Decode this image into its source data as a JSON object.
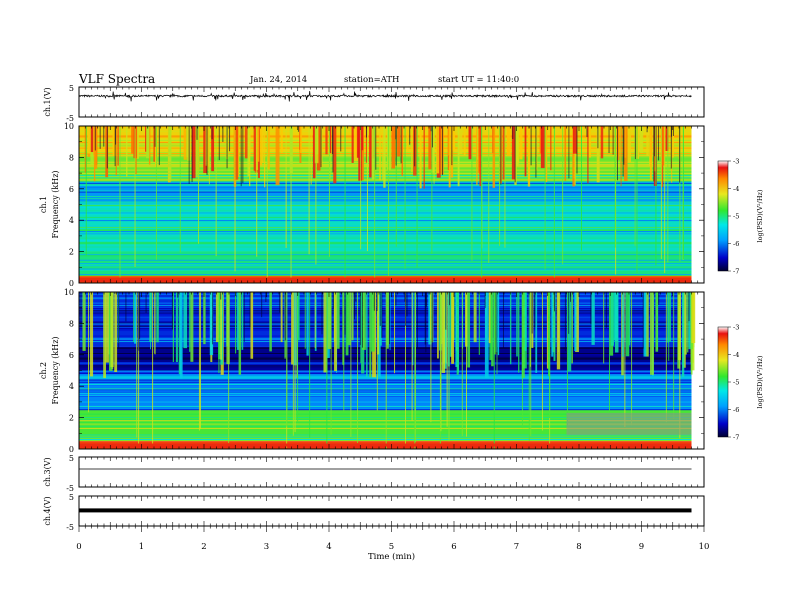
{
  "header": {
    "title": "VLF  Spectra",
    "date": "Jan. 24, 2014",
    "station": "station=ATH",
    "start_ut": "start  UT =  11:40:0"
  },
  "chart_data": [
    {
      "type": "line",
      "panel": "ch1-waveform",
      "ylabel": "ch.1(V)",
      "ylim": [
        -5,
        5
      ],
      "yticks": [
        "5",
        "-5"
      ],
      "xlim": [
        0,
        10
      ],
      "note_values": "noisy waveform centred near 2 V with sharp spikes",
      "series": [
        {
          "baseline": 2.0,
          "noise_amplitude": 0.6,
          "spike_max": 3.6
        }
      ]
    },
    {
      "type": "heatmap",
      "panel": "ch1-spectrogram",
      "ylabel": "ch.1\nFrequency  (kHz)",
      "ylabel_line1": "ch.1",
      "ylabel_line2": "Frequency  (kHz)",
      "ylim": [
        0,
        10
      ],
      "yticks": [
        "0",
        "2",
        "4",
        "6",
        "8",
        "10"
      ],
      "xlim": [
        0,
        10
      ],
      "data_extent_min": 9.8,
      "colorbar": {
        "label": "log(PSD)(V²/Hz)",
        "range": [
          -7,
          -3
        ],
        "ticks": [
          "-3",
          "-4",
          "-5",
          "-6",
          "-7"
        ]
      },
      "band_profile": [
        {
          "f": [
            8.0,
            10.0
          ],
          "logpsd": -4.2
        },
        {
          "f": [
            6.5,
            8.0
          ],
          "logpsd": -4.8
        },
        {
          "f": [
            5.0,
            6.5
          ],
          "logpsd": -5.8
        },
        {
          "f": [
            2.0,
            5.0
          ],
          "logpsd": -5.4
        },
        {
          "f": [
            0.5,
            2.0
          ],
          "logpsd": -5.2
        },
        {
          "f": [
            0.0,
            0.5
          ],
          "logpsd": -3.3
        }
      ]
    },
    {
      "type": "heatmap",
      "panel": "ch2-spectrogram",
      "ylabel_line1": "ch.2",
      "ylabel_line2": "Frequency  (kHz)",
      "ylim": [
        0,
        10
      ],
      "yticks": [
        "0",
        "2",
        "4",
        "6",
        "8",
        "10"
      ],
      "xlim": [
        0,
        10
      ],
      "data_extent_min": 9.8,
      "colorbar": {
        "label": "log(PSD)(V²/Hz)",
        "range": [
          -7,
          -3
        ],
        "ticks": [
          "-3",
          "-4",
          "-5",
          "-6",
          "-7"
        ]
      },
      "band_profile": [
        {
          "f": [
            6.5,
            10.0
          ],
          "logpsd": -6.3
        },
        {
          "f": [
            5.0,
            6.5
          ],
          "logpsd": -6.7
        },
        {
          "f": [
            2.5,
            5.0
          ],
          "logpsd": -5.9
        },
        {
          "f": [
            0.5,
            2.5
          ],
          "logpsd": -4.9
        },
        {
          "f": [
            0.0,
            0.5
          ],
          "logpsd": -3.3
        }
      ]
    },
    {
      "type": "line",
      "panel": "ch3-waveform",
      "ylabel": "ch.3(V)",
      "ylim": [
        -5,
        5
      ],
      "yticks": [
        "5",
        "-5"
      ],
      "series": [
        {
          "level": 1.0
        }
      ]
    },
    {
      "type": "line",
      "panel": "ch4-waveform",
      "ylabel": "ch.4(V)",
      "ylim": [
        -5,
        5
      ],
      "yticks": [
        "5",
        "-5"
      ],
      "series": [
        {
          "level": 0.2
        }
      ]
    },
    {
      "type": "axis",
      "xlabel": "Time  (min)",
      "xlim": [
        0,
        10
      ],
      "xticks": [
        "0",
        "1",
        "2",
        "3",
        "4",
        "5",
        "6",
        "7",
        "8",
        "9",
        "10"
      ]
    }
  ]
}
